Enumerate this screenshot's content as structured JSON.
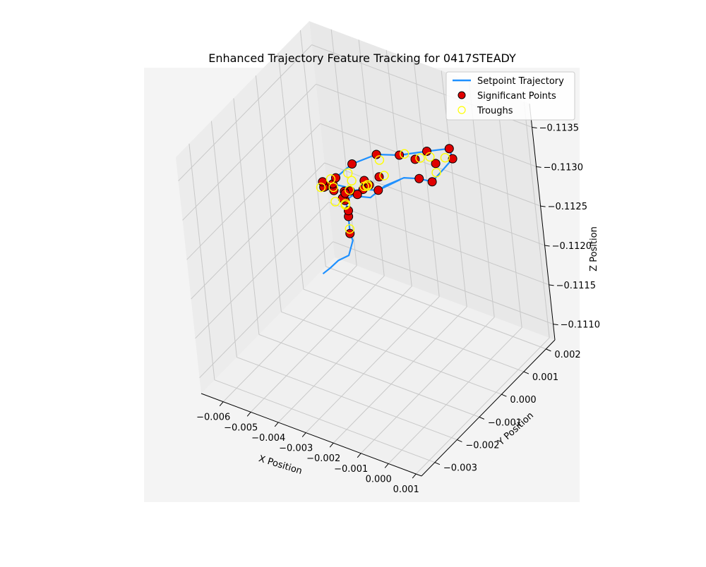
{
  "chart_data": {
    "type": "scatter",
    "projection": "3d",
    "title": "Enhanced Trajectory Feature Tracking for 0417STEADY",
    "xlabel": "X Position",
    "ylabel": "Y Position",
    "zlabel": "Z Position",
    "xlim": [
      -0.0068,
      0.0012
    ],
    "ylim": [
      -0.0036,
      0.0024
    ],
    "zlim": [
      -0.1138,
      -0.1108
    ],
    "x_ticks": [
      -0.006,
      -0.005,
      -0.004,
      -0.003,
      -0.002,
      -0.001,
      0.0,
      0.001
    ],
    "x_tick_labels": [
      "−0.006",
      "−0.005",
      "−0.004",
      "−0.003",
      "−0.002",
      "−0.001",
      "0.000",
      "0.001"
    ],
    "y_ticks": [
      -0.003,
      -0.002,
      -0.001,
      0.0,
      0.001,
      0.002
    ],
    "y_tick_labels": [
      "−0.003",
      "−0.002",
      "−0.001",
      "0.000",
      "0.001",
      "0.002"
    ],
    "z_ticks": [
      -0.1135,
      -0.113,
      -0.1125,
      -0.112,
      -0.1115,
      -0.111
    ],
    "z_tick_labels": [
      "−0.1135",
      "−0.1130",
      "−0.1125",
      "−0.1120",
      "−0.1115",
      "−0.1110"
    ],
    "grid": true,
    "legend_position": "top-right",
    "legend": [
      {
        "label": "Setpoint Trajectory",
        "kind": "line",
        "color": "#1e90ff"
      },
      {
        "label": "Significant Points",
        "kind": "marker",
        "color": "#e00000",
        "edge": "#000000"
      },
      {
        "label": "Troughs",
        "kind": "marker",
        "color": "none",
        "edge": "#ffff00"
      }
    ],
    "series": [
      {
        "name": "Setpoint Trajectory",
        "kind": "line",
        "color": "#1e90ff",
        "points": [
          [
            -0.006,
            0.001,
            -0.1111
          ],
          [
            -0.0055,
            0.0008,
            -0.1113
          ],
          [
            -0.0048,
            0.0004,
            -0.1116
          ],
          [
            -0.0042,
            0.0002,
            -0.1118
          ],
          [
            -0.0038,
            0.0,
            -0.1121
          ],
          [
            -0.0036,
            -0.0003,
            -0.1123
          ],
          [
            -0.0034,
            -0.0005,
            -0.1126
          ],
          [
            -0.0031,
            -0.0008,
            -0.1128
          ],
          [
            -0.003,
            -0.001,
            -0.113
          ],
          [
            -0.0027,
            -0.001,
            -0.1131
          ],
          [
            -0.0024,
            -0.0006,
            -0.113
          ],
          [
            -0.0021,
            -0.0003,
            -0.1131
          ],
          [
            -0.0018,
            0.0002,
            -0.1131
          ],
          [
            -0.0016,
            0.0006,
            -0.113
          ],
          [
            -0.0014,
            0.0009,
            -0.1129
          ],
          [
            -0.0012,
            0.0012,
            -0.113
          ],
          [
            -0.001,
            0.0014,
            -0.1131
          ],
          [
            -0.0009,
            0.0012,
            -0.1133
          ],
          [
            -0.0012,
            0.0006,
            -0.1134
          ],
          [
            -0.0016,
            -0.0001,
            -0.1135
          ],
          [
            -0.002,
            -0.0006,
            -0.1136
          ],
          [
            -0.0024,
            -0.0012,
            -0.1136
          ],
          [
            -0.0027,
            -0.0016,
            -0.1135
          ],
          [
            -0.003,
            -0.0018,
            -0.1134
          ],
          [
            -0.0032,
            -0.0015,
            -0.1133
          ],
          [
            -0.0033,
            -0.0011,
            -0.1132
          ],
          [
            -0.0031,
            -0.0008,
            -0.1131
          ],
          [
            -0.0028,
            -0.0012,
            -0.1132
          ],
          [
            -0.0025,
            -0.0015,
            -0.1133
          ],
          [
            -0.0022,
            -0.0016,
            -0.1134
          ],
          [
            -0.0019,
            -0.0014,
            -0.1134
          ],
          [
            -0.0017,
            -0.001,
            -0.1133
          ],
          [
            -0.0014,
            -0.0004,
            -0.1133
          ]
        ]
      },
      {
        "name": "Significant Points",
        "kind": "scatter",
        "color": "#e00000",
        "points": [
          [
            -0.0036,
            -0.0003,
            -0.1123
          ],
          [
            -0.0034,
            -0.0005,
            -0.1126
          ],
          [
            -0.0031,
            -0.0008,
            -0.1128
          ],
          [
            -0.003,
            -0.001,
            -0.113
          ],
          [
            -0.0029,
            -0.0012,
            -0.1131
          ],
          [
            -0.0031,
            -0.0013,
            -0.1132
          ],
          [
            -0.0033,
            -0.0011,
            -0.1132
          ],
          [
            -0.0032,
            -0.0015,
            -0.1133
          ],
          [
            -0.003,
            -0.0018,
            -0.1134
          ],
          [
            -0.0027,
            -0.0016,
            -0.1135
          ],
          [
            -0.0024,
            -0.0012,
            -0.1136
          ],
          [
            -0.0022,
            -0.0016,
            -0.1134
          ],
          [
            -0.0019,
            -0.0014,
            -0.1134
          ],
          [
            -0.0017,
            -0.001,
            -0.1133
          ],
          [
            -0.002,
            -0.0006,
            -0.1136
          ],
          [
            -0.0016,
            -0.0001,
            -0.1135
          ],
          [
            -0.0012,
            0.0006,
            -0.1134
          ],
          [
            -0.0009,
            0.0012,
            -0.1133
          ],
          [
            -0.001,
            0.0014,
            -0.1131
          ],
          [
            -0.0014,
            0.0009,
            -0.1129
          ],
          [
            -0.0016,
            0.0006,
            -0.113
          ],
          [
            -0.0028,
            -0.0012,
            -0.1132
          ],
          [
            -0.0025,
            -0.0015,
            -0.1133
          ],
          [
            -0.0026,
            -0.0009,
            -0.1131
          ],
          [
            -0.0023,
            -0.0007,
            -0.1132
          ],
          [
            -0.0021,
            -0.0011,
            -0.1134
          ],
          [
            -0.0018,
            -0.0008,
            -0.1134
          ],
          [
            -0.0013,
            0.0002,
            -0.1134
          ],
          [
            -0.0011,
            0.0008,
            -0.1132
          ],
          [
            -0.0034,
            -0.0014,
            -0.1133
          ]
        ]
      },
      {
        "name": "Troughs",
        "kind": "scatter",
        "color": "#ffff00",
        "points": [
          [
            -0.0035,
            -0.0004,
            -0.1124
          ],
          [
            -0.0031,
            -0.0009,
            -0.1129
          ],
          [
            -0.0029,
            -0.0011,
            -0.113
          ],
          [
            -0.003,
            -0.0014,
            -0.1131
          ],
          [
            -0.0032,
            -0.0012,
            -0.1132
          ],
          [
            -0.0033,
            -0.0016,
            -0.1133
          ],
          [
            -0.0028,
            -0.0017,
            -0.1135
          ],
          [
            -0.0025,
            -0.0013,
            -0.1135
          ],
          [
            -0.0022,
            -0.0015,
            -0.1135
          ],
          [
            -0.0019,
            -0.0012,
            -0.1134
          ],
          [
            -0.002,
            -0.0005,
            -0.1135
          ],
          [
            -0.0015,
            0.0,
            -0.1135
          ],
          [
            -0.0012,
            0.0007,
            -0.1133
          ],
          [
            -0.001,
            0.0011,
            -0.1132
          ],
          [
            -0.0013,
            0.001,
            -0.113
          ],
          [
            -0.0027,
            -0.0011,
            -0.1132
          ],
          [
            -0.0024,
            -0.0008,
            -0.1132
          ],
          [
            -0.0021,
            -0.001,
            -0.1133
          ],
          [
            -0.0017,
            -0.0007,
            -0.1134
          ],
          [
            -0.0012,
            0.0003,
            -0.1134
          ]
        ]
      }
    ]
  }
}
